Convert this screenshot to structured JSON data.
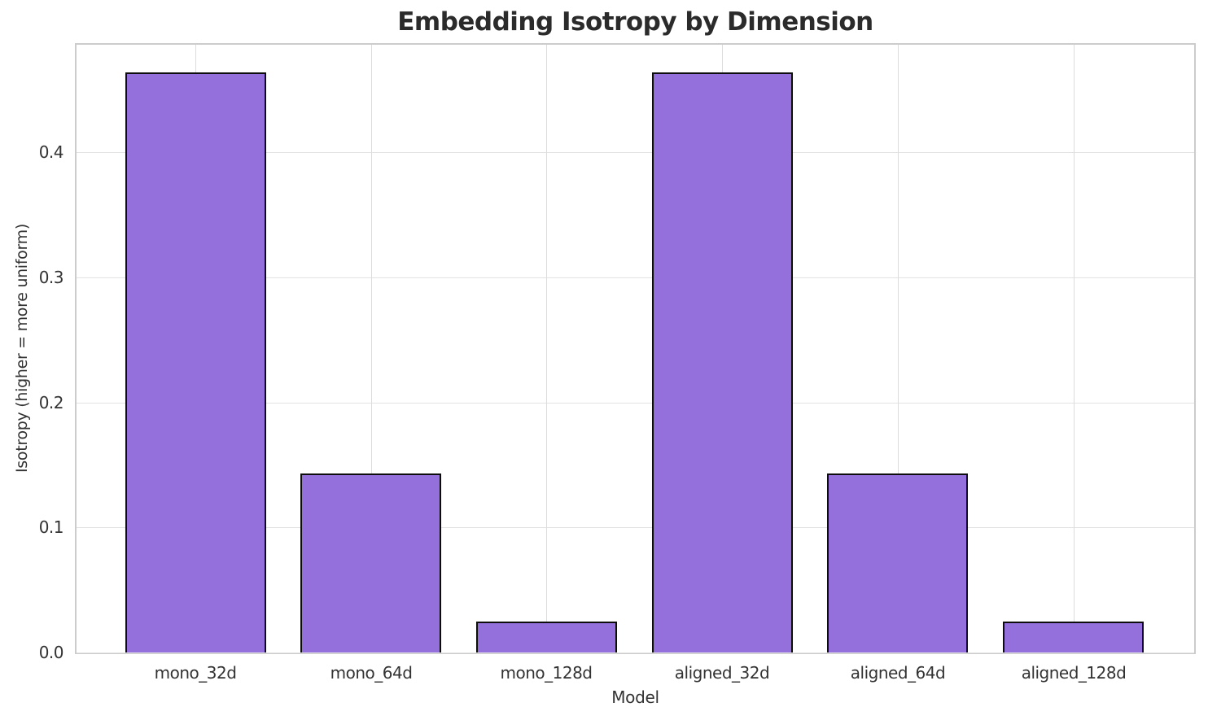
{
  "chart_data": {
    "type": "bar",
    "title": "Embedding Isotropy by Dimension",
    "xlabel": "Model",
    "ylabel": "Isotropy (higher = more uniform)",
    "categories": [
      "mono_32d",
      "mono_64d",
      "mono_128d",
      "aligned_32d",
      "aligned_64d",
      "aligned_128d"
    ],
    "values": [
      0.464,
      0.143,
      0.025,
      0.464,
      0.143,
      0.025
    ],
    "yticks": [
      0.0,
      0.1,
      0.2,
      0.3,
      0.4
    ],
    "ytick_labels": [
      "0.0",
      "0.1",
      "0.2",
      "0.3",
      "0.4"
    ],
    "ylim": [
      0,
      0.486
    ],
    "grid": true,
    "legend": "none",
    "colors": {
      "bar_fill": "#9370DB",
      "bar_edge": "#0d0d0d",
      "grid_h": "#e2e2e2",
      "grid_v": "#dcdcdc",
      "spine": "#cccccc",
      "tick_text": "#333333",
      "title_text": "#2b2b2b",
      "background": "#ffffff"
    }
  }
}
